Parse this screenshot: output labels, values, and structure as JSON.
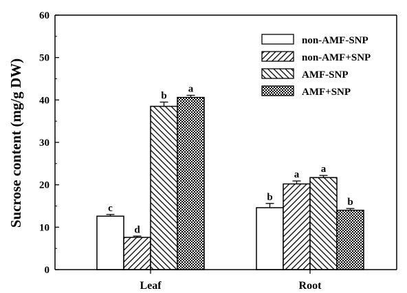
{
  "chart_data": {
    "type": "bar",
    "title": "",
    "xlabel": "",
    "ylabel": "Sucrose content (mg/g DW)",
    "ylim": [
      0,
      60
    ],
    "yticks": [
      0,
      10,
      20,
      30,
      40,
      50,
      60
    ],
    "categories": [
      "Leaf",
      "Root"
    ],
    "legend_position": "top-right",
    "grid": false,
    "series": [
      {
        "name": "non-AMF-SNP",
        "pattern": "blank",
        "values": [
          12.6,
          14.6
        ],
        "errors": [
          0.4,
          1.0
        ],
        "labels": [
          "c",
          "b"
        ]
      },
      {
        "name": "non-AMF+SNP",
        "pattern": "diagonal-right",
        "values": [
          7.6,
          20.2
        ],
        "errors": [
          0.3,
          0.7
        ],
        "labels": [
          "d",
          "a"
        ]
      },
      {
        "name": "AMF-SNP",
        "pattern": "diagonal-left",
        "values": [
          38.5,
          21.7
        ],
        "errors": [
          1.0,
          0.5
        ],
        "labels": [
          "b",
          "a"
        ]
      },
      {
        "name": "AMF+SNP",
        "pattern": "crosshatch",
        "values": [
          40.6,
          14.0
        ],
        "errors": [
          0.5,
          0.4
        ],
        "labels": [
          "a",
          "b"
        ]
      }
    ]
  }
}
